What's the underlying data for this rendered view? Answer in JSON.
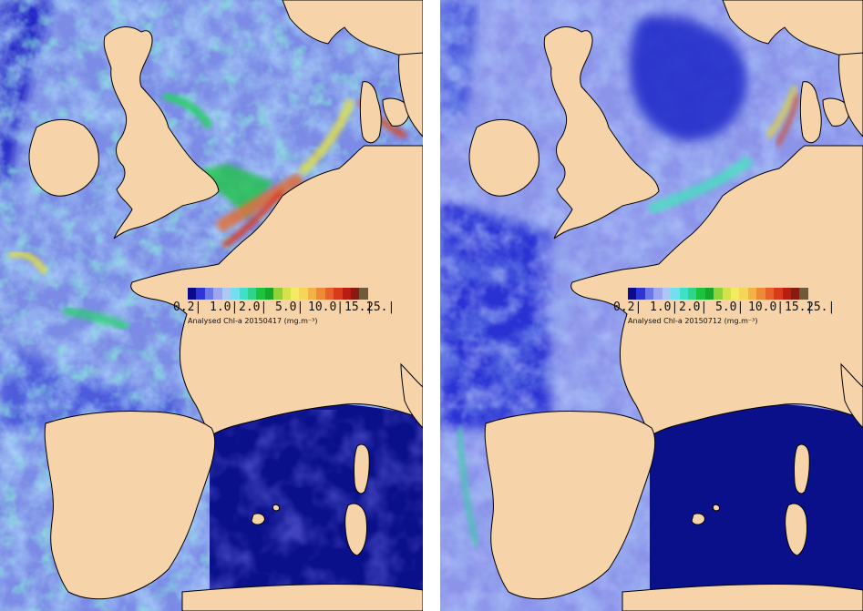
{
  "colors": {
    "land": "#f6d3a8",
    "coast": "#000000",
    "deep_blue": "#0a0f8a",
    "open_blue": "#2b2fd0",
    "mid_blue": "#7a86e6",
    "light_blue": "#9fc8f2",
    "cyan": "#56e0da",
    "green": "#1fbf3a",
    "yellow": "#e8e23a",
    "orange": "#e07a2a",
    "red": "#c81d12"
  },
  "legend_colors": [
    "#0b0c8c",
    "#2e35d6",
    "#6b76e8",
    "#9da5f0",
    "#a9c9f4",
    "#70e0f0",
    "#3fe0c8",
    "#2fd48a",
    "#1cc23c",
    "#15a82a",
    "#8fd23a",
    "#d6e24a",
    "#f3ec60",
    "#f6d65a",
    "#f2b245",
    "#ee8a35",
    "#e8602a",
    "#d83a1c",
    "#b81d12",
    "#8a1a10",
    "#6f5a3a"
  ],
  "panels": [
    {
      "id": "left",
      "ticks": [
        "0.2|",
        "1.0|",
        "2.0|",
        "5.0|",
        "10.0|",
        "15.|",
        "25.|"
      ],
      "title": "Analysed Chl-a 20150417 (mg.m⁻³)"
    },
    {
      "id": "right",
      "ticks": [
        "0.2|",
        "1.0|",
        "2.0|",
        "5.0|",
        "10.0|",
        "15.|",
        "25.|"
      ],
      "title": "Analysed Chl-a 20150712 (mg.m⁻³)"
    }
  ]
}
